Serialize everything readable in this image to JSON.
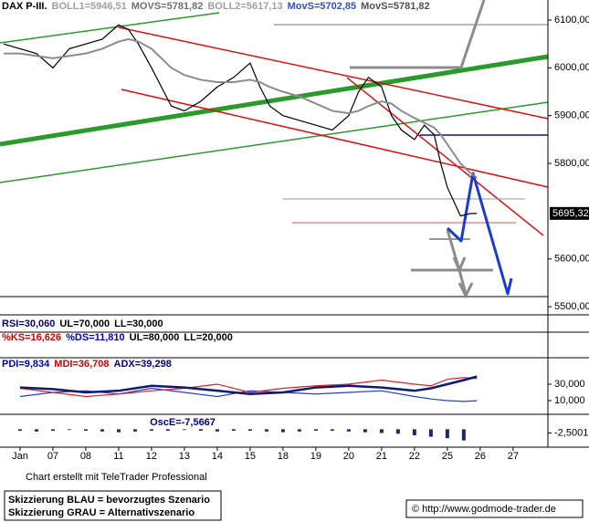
{
  "header": [
    {
      "text": "DAX P-III.",
      "color": "#000000"
    },
    {
      "text": "BOLL1=5946,51",
      "color": "#a0a0a0"
    },
    {
      "text": "MOVS=5781,82",
      "color": "#707070"
    },
    {
      "text": "BOLL2=5617,13",
      "color": "#a0a0a0"
    },
    {
      "text": "MovS=5702,85",
      "color": "#3050c0"
    },
    {
      "text": "MovS=5781,82",
      "color": "#505050"
    }
  ],
  "panel_labels": [
    [
      {
        "text": "RSI=30,060",
        "color": "#000080"
      },
      {
        "text": "UL=70,000",
        "color": "#000000"
      },
      {
        "text": "LL=30,000",
        "color": "#000000"
      }
    ],
    [
      {
        "text": "%KS=16,626",
        "color": "#d00000"
      },
      {
        "text": "%DS=11,810",
        "color": "#0000c0"
      },
      {
        "text": "UL=80,000",
        "color": "#000000"
      },
      {
        "text": "LL=20,000",
        "color": "#000000"
      }
    ]
  ],
  "chart_data": [
    {
      "type": "line",
      "x": [
        -0.5,
        0,
        0.5,
        1,
        1.5,
        2,
        2.5,
        3,
        3.3,
        3.6,
        4,
        4.3,
        4.6,
        5,
        5.5,
        6,
        6.5,
        7,
        7.3,
        7.6,
        8,
        8.5,
        9,
        9.5,
        10,
        10.3,
        10.6,
        11,
        11.3,
        11.6,
        12,
        12.3,
        12.6,
        12.8,
        13,
        13.2,
        13.4,
        13.7,
        13.9
      ],
      "series": [
        {
          "color": "#000000",
          "values": [
            6050,
            6040,
            6030,
            6000,
            6040,
            6050,
            6060,
            6090,
            6080,
            6050,
            6000,
            5960,
            5920,
            5910,
            5930,
            5960,
            5980,
            6010,
            5960,
            5920,
            5900,
            5890,
            5880,
            5870,
            5900,
            5950,
            5980,
            5960,
            5900,
            5870,
            5850,
            5880,
            5860,
            5800,
            5750,
            5720,
            5690,
            5695,
            5695.32
          ]
        },
        {
          "color": "#8c8c8c",
          "values": [
            6030,
            6030,
            6025,
            6020,
            6025,
            6030,
            6040,
            6055,
            6060,
            6055,
            6040,
            6020,
            6000,
            5985,
            5975,
            5970,
            5970,
            5975,
            5970,
            5960,
            5950,
            5940,
            5925,
            5910,
            5905,
            5910,
            5920,
            5930,
            5925,
            5910,
            5895,
            5885,
            5875,
            5860,
            5840,
            5820,
            5800,
            5780,
            5770
          ]
        }
      ],
      "xlim": [
        -0.61,
        16.06
      ],
      "ylim": [
        5483,
        6142
      ],
      "yticks": [
        {
          "value": 6100,
          "label": "6100,00"
        },
        {
          "value": 6000,
          "label": "6000,00"
        },
        {
          "value": 5900,
          "label": "5900,00"
        },
        {
          "value": 5800,
          "label": "5800,00"
        },
        {
          "value": 5600,
          "label": "5600,00"
        },
        {
          "value": 5500,
          "label": "5500,00"
        }
      ],
      "last_price": {
        "value": 5695.32,
        "label": "5695,32"
      },
      "xticks": [
        {
          "value": 0,
          "label": "Jan"
        },
        {
          "value": 1,
          "label": "07"
        },
        {
          "value": 2,
          "label": "08"
        },
        {
          "value": 3,
          "label": "11"
        },
        {
          "value": 4,
          "label": "12"
        },
        {
          "value": 5,
          "label": "13"
        },
        {
          "value": 6,
          "label": "14"
        },
        {
          "value": 7,
          "label": "15"
        },
        {
          "value": 8,
          "label": "18"
        },
        {
          "value": 9,
          "label": "19"
        },
        {
          "value": 10,
          "label": "20"
        },
        {
          "value": 11,
          "label": "21"
        },
        {
          "value": 12,
          "label": "22"
        },
        {
          "value": 13,
          "label": "25"
        },
        {
          "value": 14,
          "label": "26"
        },
        {
          "value": 15,
          "label": "27"
        }
      ]
    },
    {
      "type": "line",
      "labels": [
        {
          "text": "PDI=9,834",
          "color": "#0000c0"
        },
        {
          "text": "MDI=36,708",
          "color": "#d00000"
        },
        {
          "text": "ADX=39,298",
          "color": "#000080"
        }
      ],
      "x": [
        0,
        1,
        2,
        3,
        4,
        5,
        6,
        7,
        8,
        9,
        10,
        11,
        12,
        12.5,
        13,
        13.5,
        13.9
      ],
      "series": [
        {
          "color": "#2040d0",
          "values": [
            15,
            20,
            22,
            18,
            25,
            20,
            15,
            22,
            20,
            18,
            20,
            22,
            15,
            12,
            10,
            9,
            9.8
          ]
        },
        {
          "color": "#e02020",
          "values": [
            25,
            20,
            15,
            18,
            22,
            25,
            30,
            20,
            25,
            28,
            30,
            35,
            30,
            28,
            36,
            38,
            36.7
          ]
        },
        {
          "color": "#0a1a7a",
          "values": [
            26,
            24,
            20,
            22,
            28,
            26,
            22,
            18,
            20,
            26,
            28,
            26,
            22,
            25,
            30,
            35,
            39.3
          ]
        }
      ],
      "xlim": [
        -0.61,
        16.06
      ],
      "ylim": [
        -6.7,
        62.2
      ],
      "yticks": [
        {
          "value": 30,
          "label": "30,000"
        },
        {
          "value": 10,
          "label": "10,000"
        }
      ]
    },
    {
      "type": "bar",
      "title": "OscE=-7,5667",
      "color": "#1a2a6a",
      "x": [
        0,
        0.5,
        1,
        1.5,
        2,
        2.5,
        3,
        3.5,
        4,
        4.5,
        5,
        5.5,
        6,
        6.5,
        7,
        7.5,
        8,
        8.5,
        9,
        9.5,
        10,
        10.5,
        11,
        11.5,
        12,
        12.5,
        13,
        13.5
      ],
      "values": [
        -1,
        -1.5,
        -1,
        -0.5,
        -1,
        -1.5,
        -2,
        -1.5,
        -1,
        -1,
        -0.5,
        -1,
        -1.5,
        -1,
        -1,
        -1.5,
        -2,
        -1.5,
        -1,
        -1,
        -1.5,
        -2,
        -2.5,
        -3,
        -4,
        -5,
        -6,
        -7.5
      ],
      "xlim": [
        -0.61,
        16.06
      ],
      "ylim": [
        -12,
        10
      ],
      "yticks": [
        {
          "value": -2.5,
          "label": "-2,5001"
        }
      ]
    }
  ],
  "footer": {
    "credit": "Chart erstellt mit TeleTrader Professional",
    "legend": [
      "Skizzierung BLAU = bevorzugtes Szenario",
      "Skizzierung GRAU = Alternativszenario"
    ],
    "source": "© http://www.godmode-trader.de"
  }
}
